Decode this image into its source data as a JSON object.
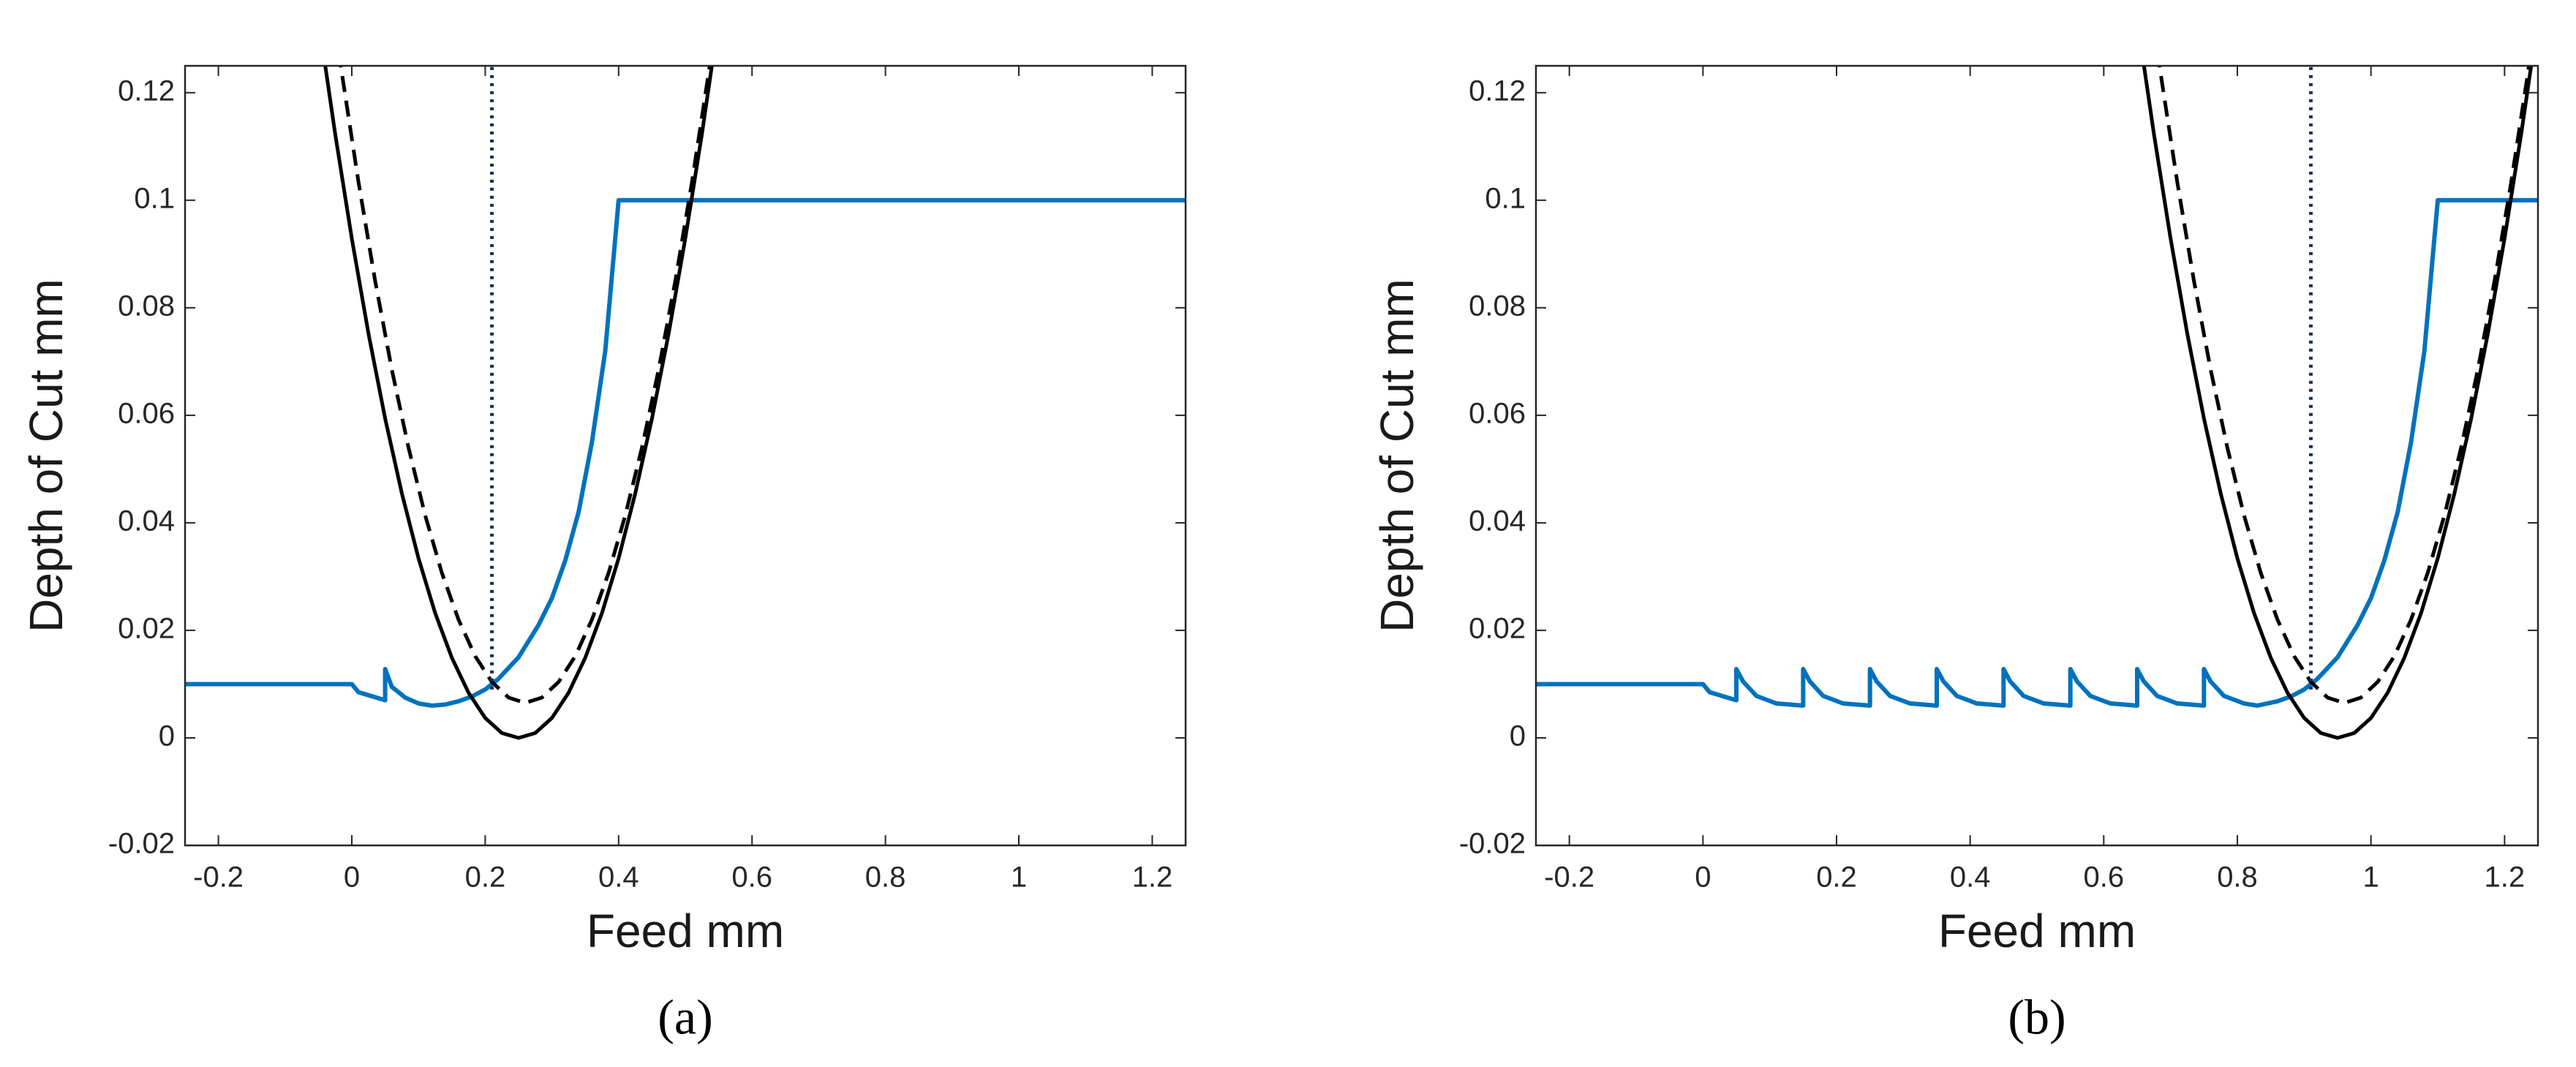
{
  "chart_data": [
    {
      "type": "line",
      "xlabel": "Feed mm",
      "ylabel": "Depth of Cut mm",
      "caption": "(a)",
      "xlim": [
        -0.25,
        1.25
      ],
      "ylim": [
        -0.02,
        0.125
      ],
      "xticks": [
        -0.2,
        0,
        0.2,
        0.4,
        0.6,
        0.8,
        1,
        1.2
      ],
      "yticks": [
        -0.02,
        0,
        0.02,
        0.04,
        0.06,
        0.08,
        0.1,
        0.12
      ],
      "series": [
        {
          "color": "#0072bd",
          "linestyle": "solid",
          "x": [
            -0.25,
            0,
            0.01,
            0.05,
            0.05,
            0.06,
            0.08,
            0.1,
            0.12,
            0.14,
            0.16,
            0.18,
            0.2,
            0.22,
            0.25,
            0.28,
            0.3,
            0.32,
            0.34,
            0.36,
            0.38,
            0.4,
            1.25
          ],
          "values": [
            0.01,
            0.01,
            0.0085,
            0.007,
            0.0128,
            0.0095,
            0.0075,
            0.0064,
            0.006,
            0.0062,
            0.0068,
            0.0077,
            0.009,
            0.011,
            0.015,
            0.021,
            0.026,
            0.033,
            0.042,
            0.055,
            0.072,
            0.1,
            0.1
          ]
        },
        {
          "color": "#000000",
          "linestyle": "solid",
          "x": [
            -0.05,
            -0.025,
            0,
            0.025,
            0.05,
            0.075,
            0.1,
            0.125,
            0.15,
            0.175,
            0.2,
            0.225,
            0.25,
            0.275,
            0.3,
            0.325,
            0.35,
            0.375,
            0.4,
            0.425,
            0.45,
            0.475,
            0.5,
            0.525,
            0.55
          ],
          "values": [
            0.1337,
            0.1124,
            0.0929,
            0.0752,
            0.0594,
            0.0455,
            0.0334,
            0.0232,
            0.0149,
            0.0084,
            0.0037,
            0.0009,
            0,
            0.0009,
            0.0037,
            0.0084,
            0.0149,
            0.0232,
            0.0334,
            0.0455,
            0.0594,
            0.0752,
            0.0929,
            0.1124,
            0.1337
          ]
        },
        {
          "color": "#000000",
          "linestyle": "dashed",
          "x": [
            -0.04,
            -0.015,
            0.01,
            0.035,
            0.06,
            0.085,
            0.11,
            0.135,
            0.16,
            0.185,
            0.21,
            0.235,
            0.26,
            0.285,
            0.31,
            0.335,
            0.36,
            0.385,
            0.41,
            0.435,
            0.46,
            0.485,
            0.51,
            0.535,
            0.56
          ],
          "values": [
            0.146,
            0.1237,
            0.1034,
            0.085,
            0.0685,
            0.054,
            0.0414,
            0.0307,
            0.022,
            0.0152,
            0.0104,
            0.0075,
            0.0065,
            0.0075,
            0.0104,
            0.0152,
            0.022,
            0.0307,
            0.0414,
            0.054,
            0.0685,
            0.085,
            0.1034,
            0.1237,
            0.146
          ]
        },
        {
          "color": "#1a2a5a",
          "linestyle": "dotted",
          "x": [
            0.21,
            0.21
          ],
          "values": [
            0.009,
            0.125
          ]
        }
      ]
    },
    {
      "type": "line",
      "xlabel": "Feed mm",
      "ylabel": "Depth of Cut mm",
      "caption": "(b)",
      "xlim": [
        -0.25,
        1.25
      ],
      "ylim": [
        -0.02,
        0.125
      ],
      "xticks": [
        -0.2,
        0,
        0.2,
        0.4,
        0.6,
        0.8,
        1,
        1.2
      ],
      "yticks": [
        -0.02,
        0,
        0.02,
        0.04,
        0.06,
        0.08,
        0.1,
        0.12
      ],
      "series": [
        {
          "color": "#0072bd",
          "linestyle": "solid",
          "x": [
            -0.25,
            0,
            0.01,
            0.05,
            0.05,
            0.06,
            0.08,
            0.11,
            0.15,
            0.15,
            0.16,
            0.18,
            0.21,
            0.25,
            0.25,
            0.26,
            0.28,
            0.31,
            0.35,
            0.35,
            0.36,
            0.38,
            0.41,
            0.45,
            0.45,
            0.46,
            0.48,
            0.51,
            0.55,
            0.55,
            0.56,
            0.58,
            0.61,
            0.65,
            0.65,
            0.66,
            0.68,
            0.71,
            0.75,
            0.75,
            0.76,
            0.78,
            0.81,
            0.83,
            0.86,
            0.88,
            0.9,
            0.92,
            0.95,
            0.98,
            1.0,
            1.02,
            1.04,
            1.06,
            1.08,
            1.1,
            1.25
          ],
          "values": [
            0.01,
            0.01,
            0.0085,
            0.007,
            0.0128,
            0.0105,
            0.0078,
            0.0064,
            0.006,
            0.0128,
            0.0105,
            0.0078,
            0.0064,
            0.006,
            0.0128,
            0.0105,
            0.0078,
            0.0064,
            0.006,
            0.0128,
            0.0105,
            0.0078,
            0.0064,
            0.006,
            0.0128,
            0.0105,
            0.0078,
            0.0064,
            0.006,
            0.0128,
            0.0105,
            0.0078,
            0.0064,
            0.006,
            0.0128,
            0.0105,
            0.0078,
            0.0064,
            0.006,
            0.0128,
            0.0105,
            0.0078,
            0.0064,
            0.006,
            0.0068,
            0.0077,
            0.009,
            0.011,
            0.015,
            0.021,
            0.026,
            0.033,
            0.042,
            0.055,
            0.072,
            0.1,
            0.1
          ]
        },
        {
          "color": "#000000",
          "linestyle": "solid",
          "x": [
            0.65,
            0.675,
            0.7,
            0.725,
            0.75,
            0.775,
            0.8,
            0.825,
            0.85,
            0.875,
            0.9,
            0.925,
            0.95,
            0.975,
            1.0,
            1.025,
            1.05,
            1.075,
            1.1,
            1.125,
            1.15,
            1.175,
            1.2,
            1.225,
            1.25
          ],
          "values": [
            0.1337,
            0.1124,
            0.0929,
            0.0752,
            0.0594,
            0.0455,
            0.0334,
            0.0232,
            0.0149,
            0.0084,
            0.0037,
            0.0009,
            0,
            0.0009,
            0.0037,
            0.0084,
            0.0149,
            0.0232,
            0.0334,
            0.0455,
            0.0594,
            0.0752,
            0.0929,
            0.1124,
            0.1337
          ]
        },
        {
          "color": "#000000",
          "linestyle": "dashed",
          "x": [
            0.66,
            0.685,
            0.71,
            0.735,
            0.76,
            0.785,
            0.81,
            0.835,
            0.86,
            0.885,
            0.91,
            0.935,
            0.96,
            0.985,
            1.01,
            1.035,
            1.06,
            1.085,
            1.11,
            1.135,
            1.16,
            1.185,
            1.21,
            1.235,
            1.26
          ],
          "values": [
            0.146,
            0.1237,
            0.1034,
            0.085,
            0.0685,
            0.054,
            0.0414,
            0.0307,
            0.022,
            0.0152,
            0.0104,
            0.0075,
            0.0065,
            0.0075,
            0.0104,
            0.0152,
            0.022,
            0.0307,
            0.0414,
            0.054,
            0.0685,
            0.085,
            0.1034,
            0.1237,
            0.146
          ]
        },
        {
          "color": "#1a2a5a",
          "linestyle": "dotted",
          "x": [
            0.91,
            0.91
          ],
          "values": [
            0.009,
            0.125
          ]
        }
      ]
    }
  ]
}
